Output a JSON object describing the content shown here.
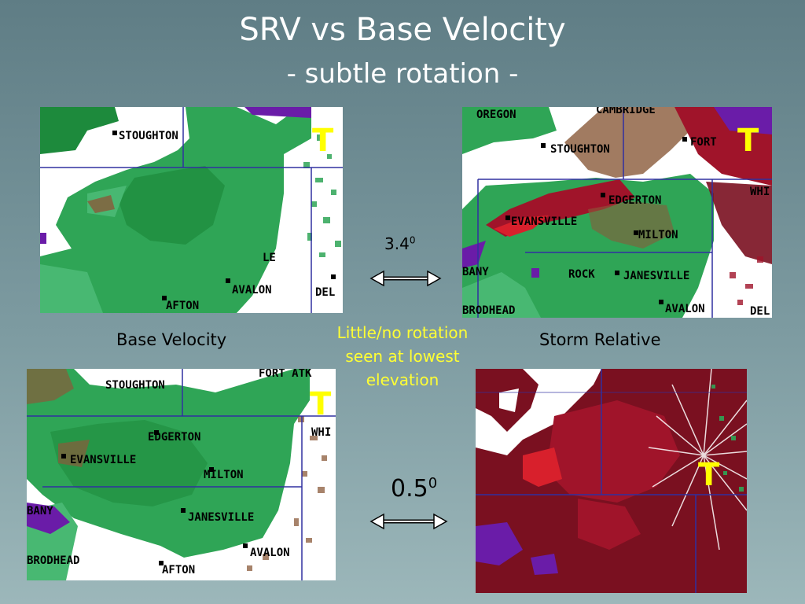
{
  "slide": {
    "title": "SRV vs Base Velocity",
    "subtitle": "- subtle rotation -",
    "label_base_velocity": "Base Velocity",
    "label_storm_relative": "Storm Relative",
    "note_lines": [
      "Little/no rotation",
      "seen at lowest",
      "elevation"
    ],
    "angle_top": "3.4",
    "angle_bottom": "0.5",
    "angle_unit": "0"
  },
  "colors": {
    "green_dark": "#1d8a3c",
    "green_mid": "#2fa556",
    "green_light": "#48b872",
    "red_dark": "#7a1020",
    "red_mid": "#a0142a",
    "red_bright": "#d8202c",
    "purple": "#6a1ca8",
    "county_line": "#3030a0",
    "tornado_marker": "#ffff00",
    "title_text": "#ffffff",
    "note_text": "#ffff33"
  },
  "maps": {
    "top_left": {
      "tornado_symbol": "T",
      "places": [
        "STOUGHTON",
        "LE",
        "AVALON",
        "DEL",
        "AFTON"
      ]
    },
    "top_right": {
      "tornado_symbol": "T",
      "places": [
        "OREGON",
        "CAMBRIDGE",
        "STOUGHTON",
        "FORT",
        "EDGERTON",
        "EVANSVILLE",
        "MILTON",
        "ROCK",
        "JANESVILLE",
        "BANY",
        "BRODHEAD",
        "AVALON",
        "DEL",
        "WHI"
      ]
    },
    "bottom_left": {
      "tornado_symbol": "T",
      "places": [
        "STOUGHTON",
        "FORT ATK",
        "EDGERTON",
        "WHI",
        "EVANSVILLE",
        "MILTON",
        "JANESVILLE",
        "BANY",
        "BRODHEAD",
        "AVALON",
        "AFTON"
      ]
    },
    "bottom_right": {
      "tornado_symbol": "T"
    }
  }
}
